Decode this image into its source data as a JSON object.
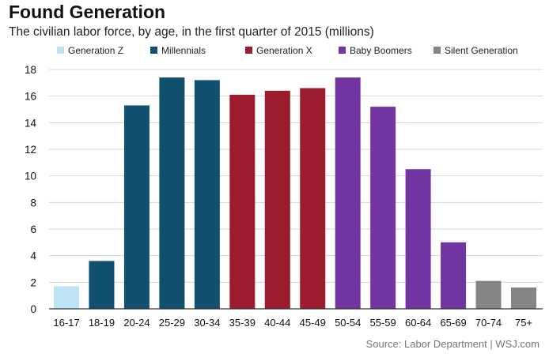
{
  "title": "Found Generation",
  "subtitle": "The civilian labor force, by age, in the first quarter of 2015 (millions)",
  "source": "Source: Labor Department  |  WSJ.com",
  "chart_data": {
    "type": "bar",
    "title": "Found Generation",
    "subtitle": "The civilian labor force, by age, in the first quarter of 2015 (millions)",
    "xlabel": "",
    "ylabel": "",
    "ylim": [
      0,
      18
    ],
    "yticks": [
      0,
      2,
      4,
      6,
      8,
      10,
      12,
      14,
      16,
      18
    ],
    "grid": true,
    "legend_position": "top",
    "categories": [
      "16-17",
      "18-19",
      "20-24",
      "25-29",
      "30-34",
      "35-39",
      "40-44",
      "45-49",
      "50-54",
      "55-59",
      "60-64",
      "65-69",
      "70-74",
      "75+"
    ],
    "values": [
      1.7,
      3.6,
      15.3,
      17.4,
      17.2,
      16.1,
      16.4,
      16.6,
      17.4,
      15.2,
      10.5,
      5.0,
      2.1,
      1.6
    ],
    "groups": [
      "Generation Z",
      "Millennials",
      "Millennials",
      "Millennials",
      "Millennials",
      "Generation X",
      "Generation X",
      "Generation X",
      "Baby Boomers",
      "Baby Boomers",
      "Baby Boomers",
      "Baby Boomers",
      "Silent Generation",
      "Silent Generation"
    ],
    "legend": [
      {
        "name": "Generation Z",
        "color": "#bfe3f4"
      },
      {
        "name": "Millennials",
        "color": "#11506e"
      },
      {
        "name": "Generation X",
        "color": "#9b1c2d"
      },
      {
        "name": "Baby Boomers",
        "color": "#7234a0"
      },
      {
        "name": "Silent Generation",
        "color": "#858585"
      }
    ]
  }
}
